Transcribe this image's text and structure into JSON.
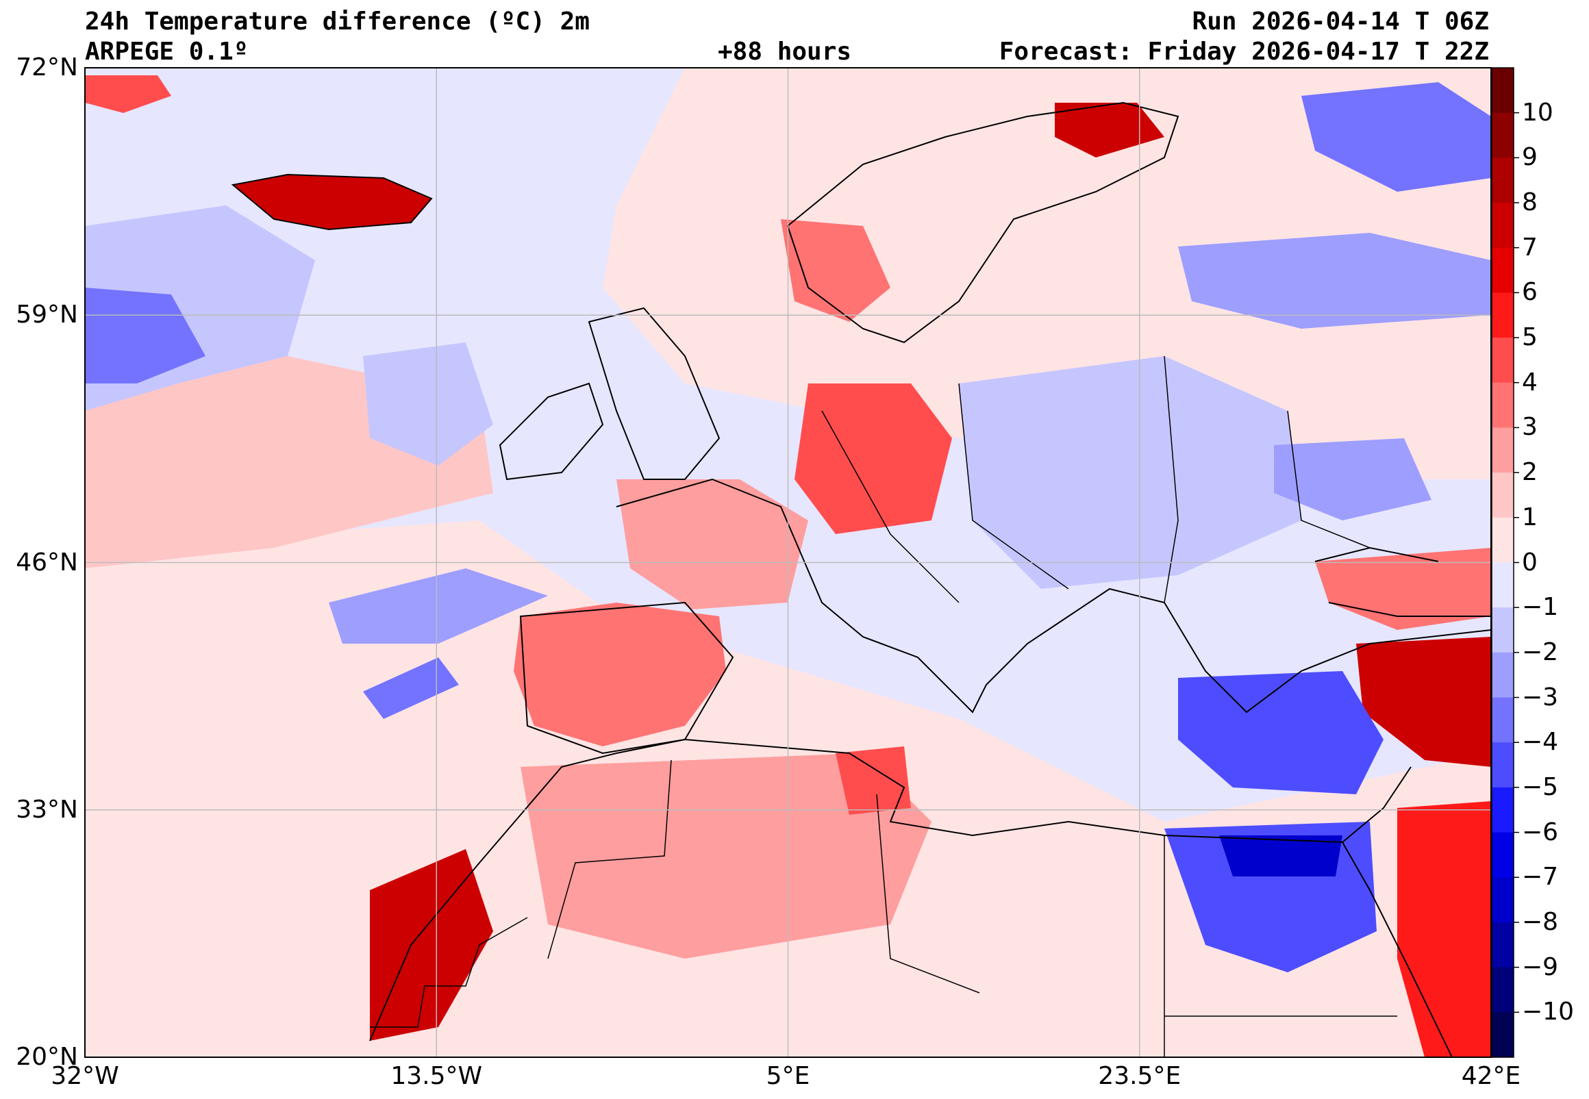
{
  "header": {
    "title": "24h Temperature difference (ºC) 2m",
    "model": "ARPEGE 0.1º",
    "lead_time": "+88 hours",
    "run": "Run 2026-04-14 T 06Z",
    "forecast": "Forecast: Friday 2026-04-17 T 22Z"
  },
  "map": {
    "lon_range": [
      -32,
      42
    ],
    "lat_range": [
      20,
      72
    ],
    "lat_ticks": [
      {
        "value": 72,
        "label": "72°N"
      },
      {
        "value": 59,
        "label": "59°N"
      },
      {
        "value": 46,
        "label": "46°N"
      },
      {
        "value": 33,
        "label": "33°N"
      },
      {
        "value": 20,
        "label": "20°N"
      }
    ],
    "lon_ticks": [
      {
        "value": -32,
        "label": "32°W"
      },
      {
        "value": -13.5,
        "label": "13.5°W"
      },
      {
        "value": 5,
        "label": "5°E"
      },
      {
        "value": 23.5,
        "label": "23.5°E"
      },
      {
        "value": 42,
        "label": "42°E"
      }
    ],
    "grid": true
  },
  "colorbar": {
    "levels": [
      10,
      9,
      8,
      7,
      6,
      5,
      4,
      3,
      2,
      1,
      0,
      -1,
      -2,
      -3,
      -4,
      -5,
      -6,
      -7,
      -8,
      -9,
      -10
    ],
    "labels": [
      "10",
      "9",
      "8",
      "7",
      "6",
      "5",
      "4",
      "3",
      "2",
      "1",
      "0",
      "−1",
      "−2",
      "−3",
      "−4",
      "−5",
      "−6",
      "−7",
      "−8",
      "−9",
      "−10"
    ],
    "colors": [
      "#6b0000",
      "#8c0000",
      "#ad0000",
      "#cc0000",
      "#e60000",
      "#ff1a1a",
      "#ff4d4d",
      "#ff7373",
      "#ff9e9e",
      "#ffc6c6",
      "#ffe4e4",
      "#e6e6ff",
      "#c6c6ff",
      "#9e9eff",
      "#7373ff",
      "#4d4dff",
      "#1a1aff",
      "#0000e6",
      "#0000cc",
      "#0000a3",
      "#00007a",
      "#000055"
    ]
  },
  "legend_colors": {
    "ocean_neutral": "#ffe4e4",
    "ocean_cool": "#e6e6ff",
    "coast": "#000000",
    "grid": "#bbbbbb"
  }
}
